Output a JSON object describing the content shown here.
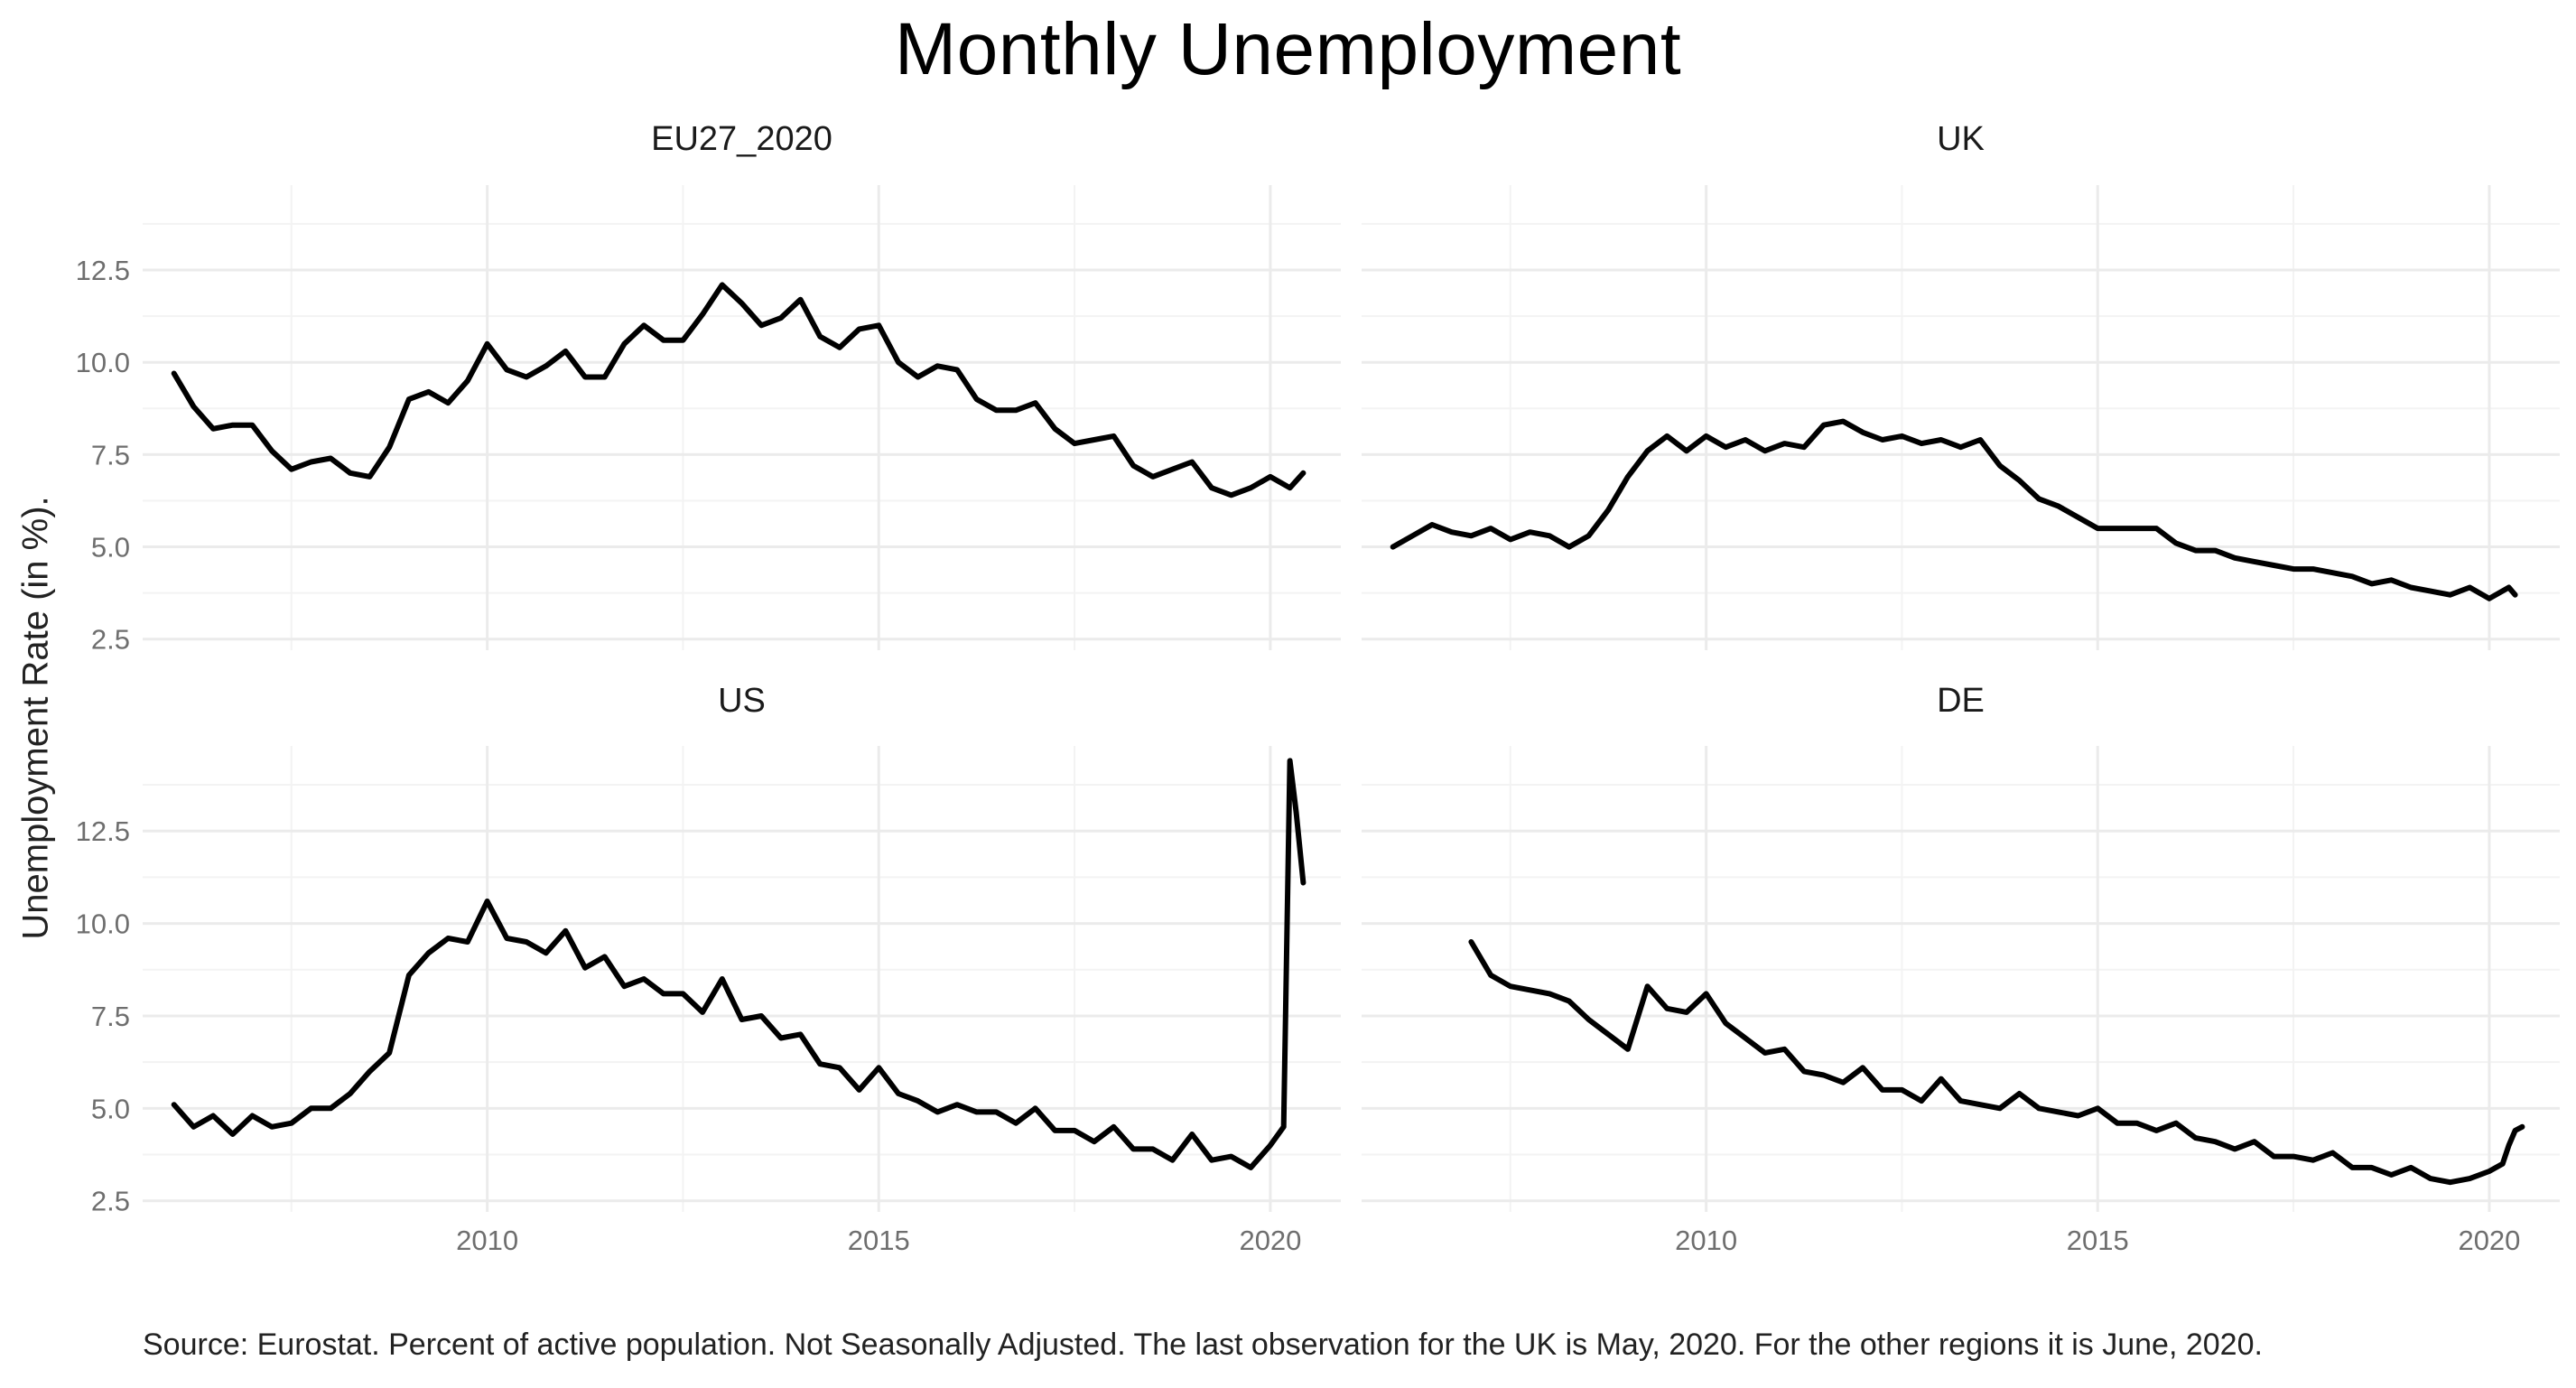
{
  "title": "Monthly Unemployment",
  "ylabel": "Unemployment Rate (in %).",
  "caption": "Source: Eurostat. Percent of active population. Not Seasonally Adjusted. The last observation for the UK is May, 2020. For the other regions it is June, 2020.",
  "chart_data": {
    "type": "line",
    "layout": "2x2 facets, shared axes",
    "xlim": [
      2005.6,
      2020.9
    ],
    "ylim": [
      2.2,
      14.8
    ],
    "x_ticks": [
      2010,
      2015,
      2020
    ],
    "x_tick_labels": [
      "2010",
      "2015",
      "2020"
    ],
    "y_ticks": [
      2.5,
      5.0,
      7.5,
      10.0,
      12.5
    ],
    "y_tick_labels": [
      "2.5",
      "5.0",
      "7.5",
      "10.0",
      "12.5"
    ],
    "grid": true,
    "line_color": "#000000",
    "grid_color": "#ebebeb",
    "facets": [
      {
        "label": "EU27_2020",
        "x": [
          2006.0,
          2006.25,
          2006.5,
          2006.75,
          2007.0,
          2007.25,
          2007.5,
          2007.75,
          2008.0,
          2008.25,
          2008.5,
          2008.75,
          2009.0,
          2009.25,
          2009.5,
          2009.75,
          2010.0,
          2010.25,
          2010.5,
          2010.75,
          2011.0,
          2011.25,
          2011.5,
          2011.75,
          2012.0,
          2012.25,
          2012.5,
          2012.75,
          2013.0,
          2013.25,
          2013.5,
          2013.75,
          2014.0,
          2014.25,
          2014.5,
          2014.75,
          2015.0,
          2015.25,
          2015.5,
          2015.75,
          2016.0,
          2016.25,
          2016.5,
          2016.75,
          2017.0,
          2017.25,
          2017.5,
          2017.75,
          2018.0,
          2018.25,
          2018.5,
          2018.75,
          2019.0,
          2019.25,
          2019.5,
          2019.75,
          2020.0,
          2020.25,
          2020.42
        ],
        "y": [
          9.7,
          8.8,
          8.2,
          8.3,
          8.3,
          7.6,
          7.1,
          7.3,
          7.4,
          7.0,
          6.9,
          7.7,
          9.0,
          9.2,
          8.9,
          9.5,
          10.5,
          9.8,
          9.6,
          9.9,
          10.3,
          9.6,
          9.6,
          10.5,
          11.0,
          10.6,
          10.6,
          11.3,
          12.1,
          11.6,
          11.0,
          11.2,
          11.7,
          10.7,
          10.4,
          10.9,
          11.0,
          10.0,
          9.6,
          9.9,
          9.8,
          9.0,
          8.7,
          8.7,
          8.9,
          8.2,
          7.8,
          7.9,
          8.0,
          7.2,
          6.9,
          7.1,
          7.3,
          6.6,
          6.4,
          6.6,
          6.9,
          6.6,
          7.0
        ]
      },
      {
        "label": "UK",
        "x": [
          2006.0,
          2006.25,
          2006.5,
          2006.75,
          2007.0,
          2007.25,
          2007.5,
          2007.75,
          2008.0,
          2008.25,
          2008.5,
          2008.75,
          2009.0,
          2009.25,
          2009.5,
          2009.75,
          2010.0,
          2010.25,
          2010.5,
          2010.75,
          2011.0,
          2011.25,
          2011.5,
          2011.75,
          2012.0,
          2012.25,
          2012.5,
          2012.75,
          2013.0,
          2013.25,
          2013.5,
          2013.75,
          2014.0,
          2014.25,
          2014.5,
          2014.75,
          2015.0,
          2015.25,
          2015.5,
          2015.75,
          2016.0,
          2016.25,
          2016.5,
          2016.75,
          2017.0,
          2017.25,
          2017.5,
          2017.75,
          2018.0,
          2018.25,
          2018.5,
          2018.75,
          2019.0,
          2019.25,
          2019.5,
          2019.75,
          2020.0,
          2020.25,
          2020.33
        ],
        "y": [
          5.0,
          5.3,
          5.6,
          5.4,
          5.3,
          5.5,
          5.2,
          5.4,
          5.3,
          5.0,
          5.3,
          6.0,
          6.9,
          7.6,
          8.0,
          7.6,
          8.0,
          7.7,
          7.9,
          7.6,
          7.8,
          7.7,
          8.3,
          8.4,
          8.1,
          7.9,
          8.0,
          7.8,
          7.9,
          7.7,
          7.9,
          7.2,
          6.8,
          6.3,
          6.1,
          5.8,
          5.5,
          5.5,
          5.5,
          5.5,
          5.1,
          4.9,
          4.9,
          4.7,
          4.6,
          4.5,
          4.4,
          4.4,
          4.3,
          4.2,
          4.0,
          4.1,
          3.9,
          3.8,
          3.7,
          3.9,
          3.6,
          3.9,
          3.7
        ]
      },
      {
        "label": "US",
        "x": [
          2006.0,
          2006.25,
          2006.5,
          2006.75,
          2007.0,
          2007.25,
          2007.5,
          2007.75,
          2008.0,
          2008.25,
          2008.5,
          2008.75,
          2009.0,
          2009.25,
          2009.5,
          2009.75,
          2010.0,
          2010.25,
          2010.5,
          2010.75,
          2011.0,
          2011.25,
          2011.5,
          2011.75,
          2012.0,
          2012.25,
          2012.5,
          2012.75,
          2013.0,
          2013.25,
          2013.5,
          2013.75,
          2014.0,
          2014.25,
          2014.5,
          2014.75,
          2015.0,
          2015.25,
          2015.5,
          2015.75,
          2016.0,
          2016.25,
          2016.5,
          2016.75,
          2017.0,
          2017.25,
          2017.5,
          2017.75,
          2018.0,
          2018.25,
          2018.5,
          2018.75,
          2019.0,
          2019.25,
          2019.5,
          2019.75,
          2020.0,
          2020.17,
          2020.25,
          2020.33,
          2020.42
        ],
        "y": [
          5.1,
          4.5,
          4.8,
          4.3,
          4.8,
          4.5,
          4.6,
          5.0,
          5.0,
          5.4,
          6.0,
          6.5,
          8.6,
          9.2,
          9.6,
          9.5,
          10.6,
          9.6,
          9.5,
          9.2,
          9.8,
          8.8,
          9.1,
          8.3,
          8.5,
          8.1,
          8.1,
          7.6,
          8.5,
          7.4,
          7.5,
          6.9,
          7.0,
          6.2,
          6.1,
          5.5,
          6.1,
          5.4,
          5.2,
          4.9,
          5.1,
          4.9,
          4.9,
          4.6,
          5.0,
          4.4,
          4.4,
          4.1,
          4.5,
          3.9,
          3.9,
          3.6,
          4.3,
          3.6,
          3.7,
          3.4,
          4.0,
          4.5,
          14.4,
          13.0,
          11.1
        ]
      },
      {
        "label": "DE",
        "x": [
          2007.0,
          2007.25,
          2007.5,
          2007.75,
          2008.0,
          2008.25,
          2008.5,
          2008.75,
          2009.0,
          2009.25,
          2009.5,
          2009.75,
          2010.0,
          2010.25,
          2010.5,
          2010.75,
          2011.0,
          2011.25,
          2011.5,
          2011.75,
          2012.0,
          2012.25,
          2012.5,
          2012.75,
          2013.0,
          2013.25,
          2013.5,
          2013.75,
          2014.0,
          2014.25,
          2014.5,
          2014.75,
          2015.0,
          2015.25,
          2015.5,
          2015.75,
          2016.0,
          2016.25,
          2016.5,
          2016.75,
          2017.0,
          2017.25,
          2017.5,
          2017.75,
          2018.0,
          2018.25,
          2018.5,
          2018.75,
          2019.0,
          2019.25,
          2019.5,
          2019.75,
          2020.0,
          2020.17,
          2020.25,
          2020.33,
          2020.42
        ],
        "y": [
          9.5,
          8.6,
          8.3,
          8.2,
          8.1,
          7.9,
          7.4,
          7.0,
          6.6,
          8.3,
          7.7,
          7.6,
          8.1,
          7.3,
          6.9,
          6.5,
          6.6,
          6.0,
          5.9,
          5.7,
          6.1,
          5.5,
          5.5,
          5.2,
          5.8,
          5.2,
          5.1,
          5.0,
          5.4,
          5.0,
          4.9,
          4.8,
          5.0,
          4.6,
          4.6,
          4.4,
          4.6,
          4.2,
          4.1,
          3.9,
          4.1,
          3.7,
          3.7,
          3.6,
          3.8,
          3.4,
          3.4,
          3.2,
          3.4,
          3.1,
          3.0,
          3.1,
          3.3,
          3.5,
          4.0,
          4.4,
          4.5
        ]
      }
    ]
  }
}
